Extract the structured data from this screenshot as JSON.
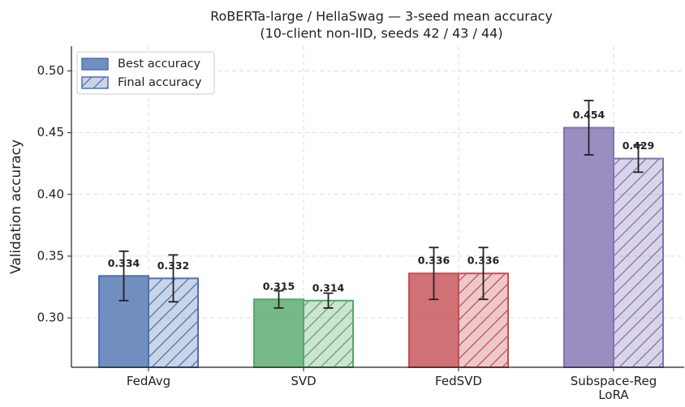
{
  "chart_data": {
    "type": "bar",
    "title": "RoBERTa-large / HellaSwag — 3-seed mean accuracy",
    "subtitle": "(10-client non-IID, seeds 42 / 43 / 44)",
    "y_label": "Validation accuracy",
    "categories": [
      "FedAvg",
      "SVD",
      "FedSVD",
      "Subspace-Reg\nLoRA"
    ],
    "colors": [
      "#4c72b0",
      "#55a868",
      "#c44e52",
      "#8172b2"
    ],
    "series": [
      {
        "name": "Best accuracy",
        "hatch": false,
        "values": [
          0.334,
          0.315,
          0.336,
          0.454
        ],
        "errors": [
          0.02,
          0.007,
          0.021,
          0.022
        ]
      },
      {
        "name": "Final accuracy",
        "hatch": true,
        "values": [
          0.332,
          0.314,
          0.336,
          0.429
        ],
        "errors": [
          0.019,
          0.006,
          0.021,
          0.011
        ]
      }
    ],
    "ylim": [
      0.26,
      0.52
    ],
    "yticks": [
      {
        "value": 0.3,
        "label": "0.30"
      },
      0.35,
      {
        "value": 0.4,
        "label": "0.40"
      },
      0.45,
      {
        "value": 0.5,
        "label": "0.50"
      }
    ],
    "grid": true,
    "legend": "upper left"
  }
}
